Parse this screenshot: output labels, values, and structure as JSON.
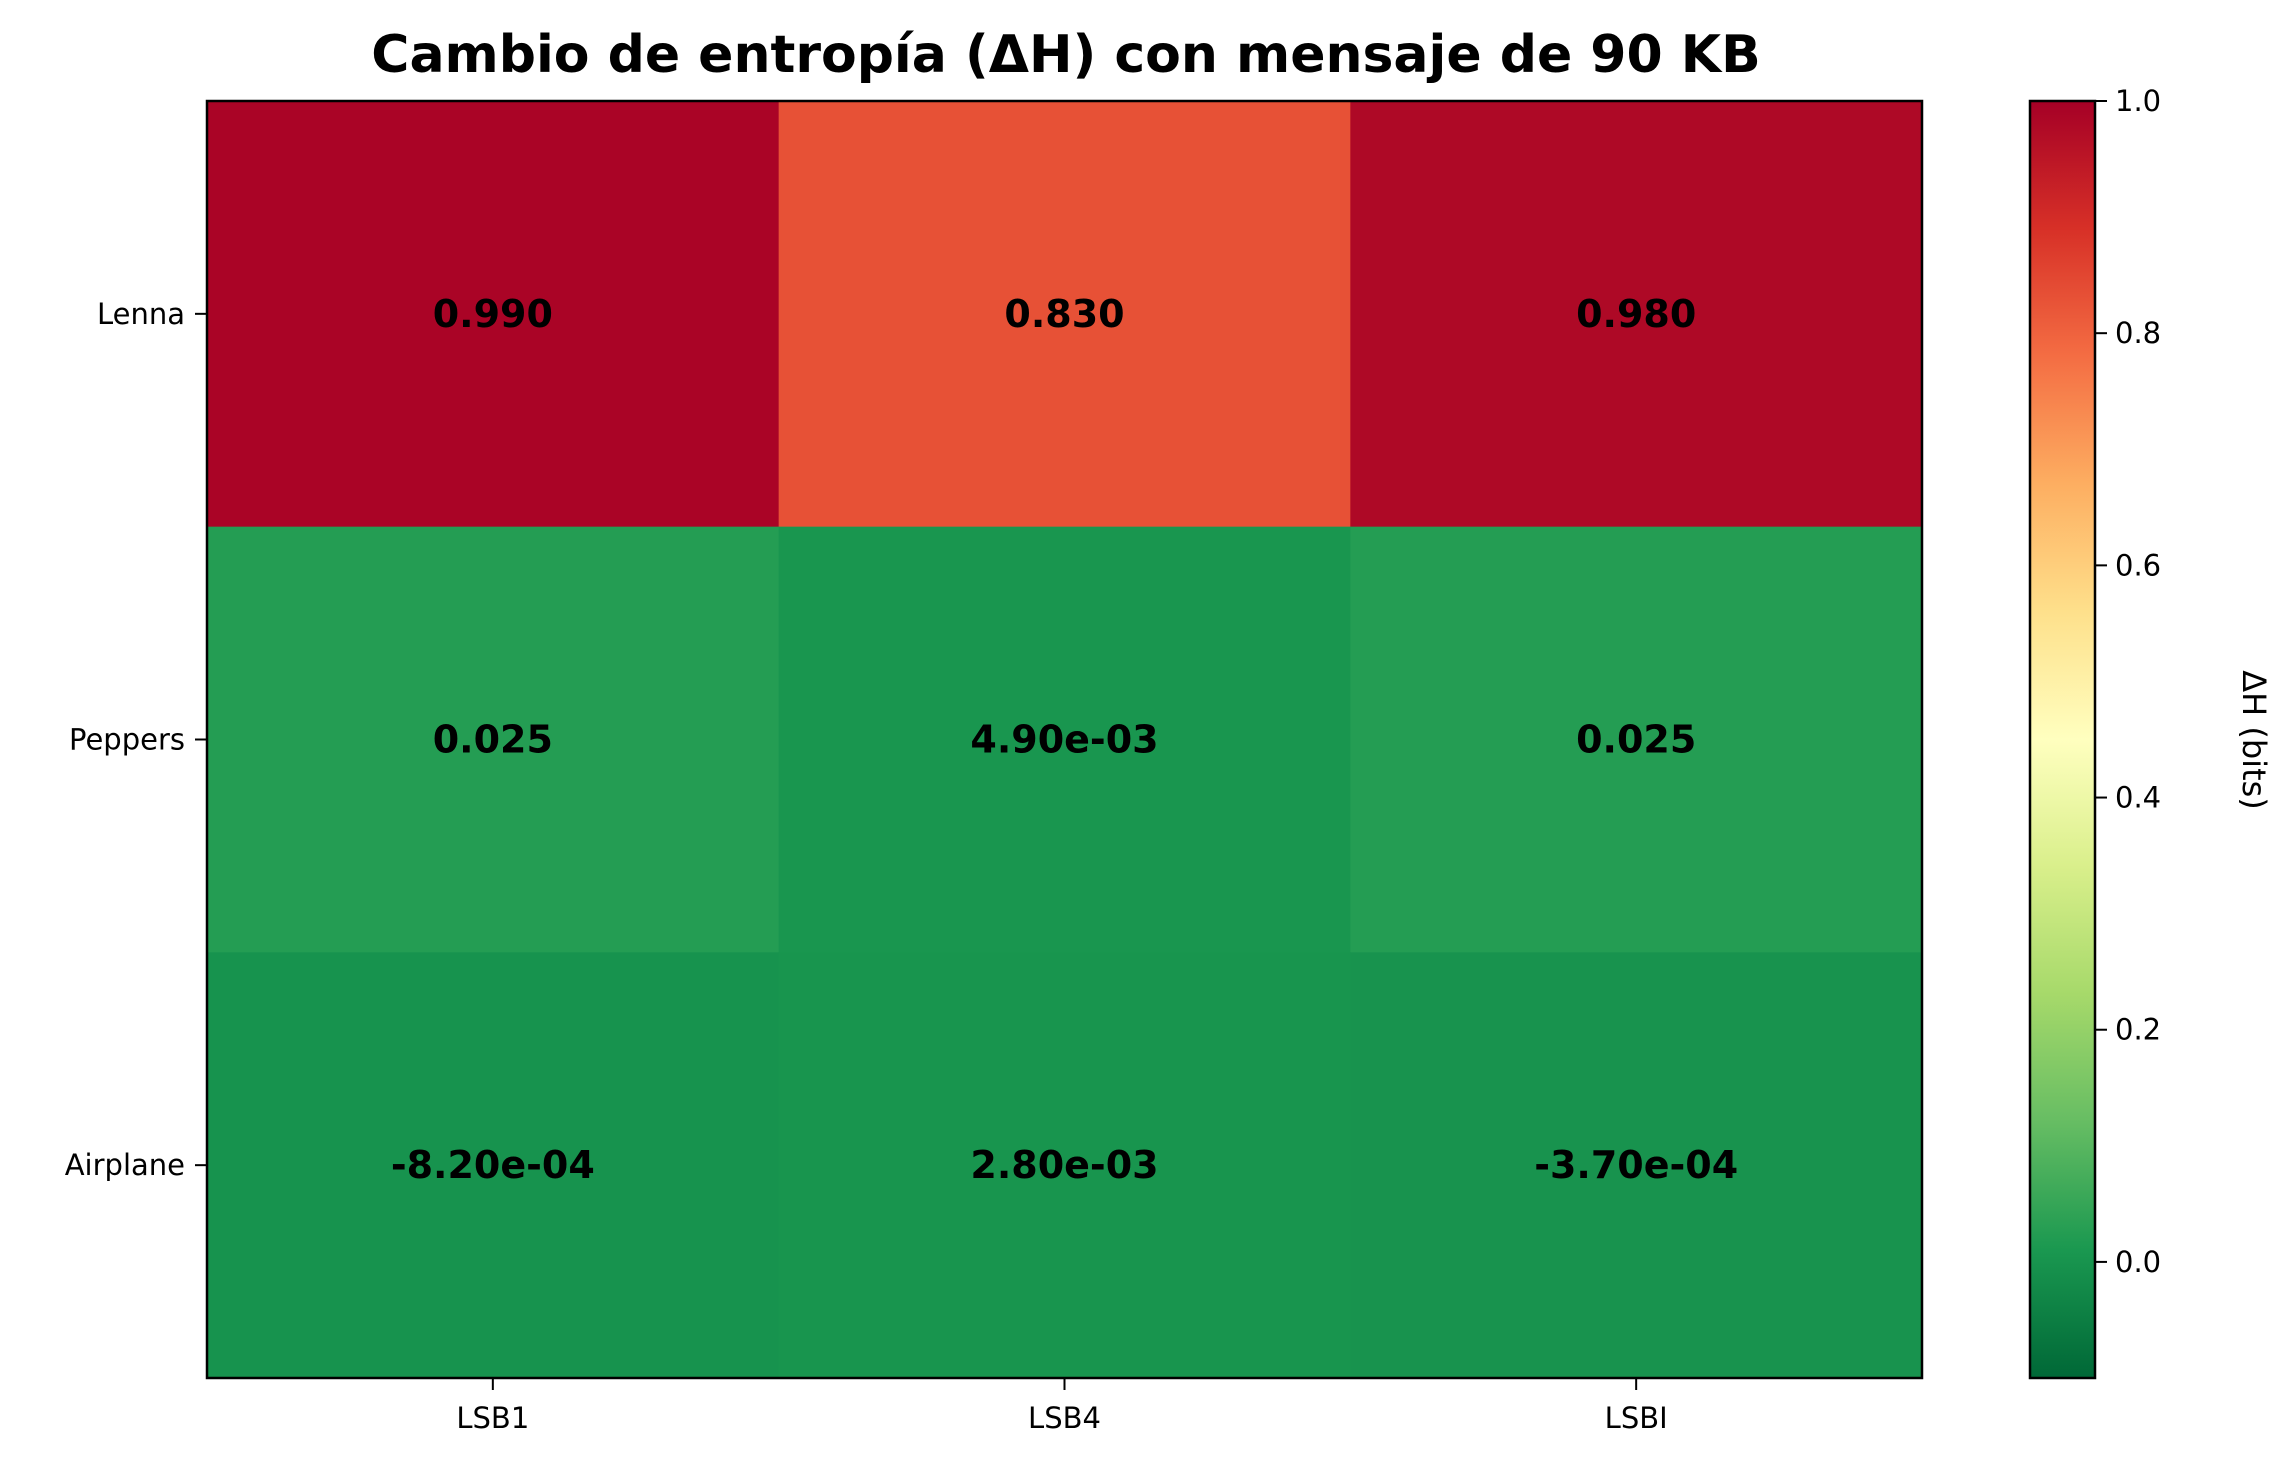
{
  "chart_data": {
    "type": "heatmap",
    "title": "Cambio de entropía (ΔH) con mensaje de 90 KB",
    "x_categories": [
      "LSB1",
      "LSB4",
      "LSBI"
    ],
    "y_categories": [
      "Lenna",
      "Peppers",
      "Airplane"
    ],
    "values": [
      [
        0.99,
        0.83,
        0.98
      ],
      [
        0.025,
        0.0049,
        0.025
      ],
      [
        -0.00082,
        0.0028,
        -0.00037
      ]
    ],
    "cell_labels": [
      [
        "0.990",
        "0.830",
        "0.980"
      ],
      [
        "0.025",
        "4.90e-03",
        "0.025"
      ],
      [
        "-8.20e-04",
        "2.80e-03",
        "-3.70e-04"
      ]
    ],
    "colormap": "RdYlGn_r",
    "colorbar": {
      "label": "ΔH (bits)",
      "range": [
        -0.1,
        1.0
      ],
      "ticks": [
        0.0,
        0.2,
        0.4,
        0.6,
        0.8,
        1.0
      ],
      "tick_labels": [
        "0.0",
        "0.2",
        "0.4",
        "0.6",
        "0.8",
        "1.0"
      ]
    }
  }
}
